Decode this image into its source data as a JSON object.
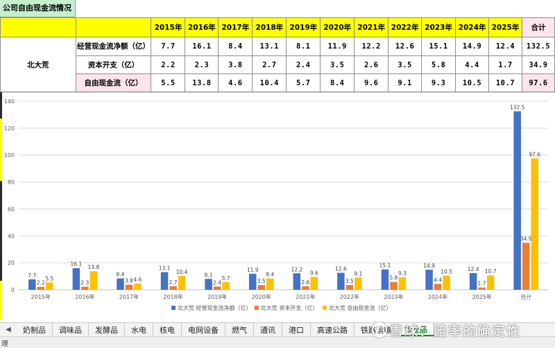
{
  "sheet": {
    "title": "公司自由现金流情况",
    "company": "北大荒",
    "years": [
      "2015年",
      "2016年",
      "2017年",
      "2018年",
      "2019年",
      "2020年",
      "2021年",
      "2022年",
      "2023年",
      "2024年",
      "2025年"
    ],
    "total_label": "合计",
    "rows": [
      {
        "label": "经营现金流净额（亿）",
        "values": [
          "7.7",
          "16.1",
          "8.4",
          "13.1",
          "8.1",
          "11.9",
          "12.2",
          "12.6",
          "15.1",
          "14.9",
          "12.4"
        ],
        "total": "132.5"
      },
      {
        "label": "资本开支（亿）",
        "values": [
          "2.2",
          "2.3",
          "3.8",
          "2.7",
          "2.4",
          "3.5",
          "2.6",
          "3.5",
          "5.8",
          "4.4",
          "1.7"
        ],
        "total": "34.9"
      },
      {
        "label": "自由现金流（亿）",
        "values": [
          "5.5",
          "13.8",
          "4.6",
          "10.4",
          "5.7",
          "8.4",
          "9.6",
          "9.1",
          "9.3",
          "10.5",
          "10.7"
        ],
        "total": "97.6"
      }
    ]
  },
  "chart_data": {
    "type": "bar",
    "categories": [
      "2015年",
      "2016年",
      "2017年",
      "2018年",
      "2019年",
      "2020年",
      "2021年",
      "2022年",
      "2023年",
      "2024年",
      "2025年",
      "合计"
    ],
    "series": [
      {
        "name": "北大荒 经营现金流净额（亿）",
        "color": "#4472c4",
        "values": [
          7.7,
          16.1,
          8.4,
          13.1,
          8.1,
          11.9,
          12.2,
          12.6,
          15.1,
          14.9,
          12.4,
          132.5
        ]
      },
      {
        "name": "北大荒 资本开支（亿）",
        "color": "#ed7d31",
        "values": [
          2.2,
          2.3,
          3.8,
          2.7,
          2.4,
          3.5,
          2.6,
          3.5,
          5.8,
          4.4,
          1.7,
          34.9
        ]
      },
      {
        "name": "北大荒 自由现金流（亿）",
        "color": "#ffc000",
        "values": [
          5.5,
          13.8,
          4.6,
          10.4,
          5.7,
          8.4,
          9.6,
          9.1,
          9.3,
          10.5,
          10.7,
          97.6
        ]
      }
    ],
    "ylim": [
      0,
      140
    ],
    "yticks": [
      0,
      20,
      40,
      60,
      80,
      100,
      120,
      140
    ],
    "grid": true,
    "legend": "bottom-right"
  },
  "tabs": {
    "items": [
      "奶制品",
      "调味品",
      "发酵品",
      "水电",
      "核电",
      "电网设备",
      "燃气",
      "通讯",
      "港口",
      "高速公路",
      "铁路运输",
      "农业品"
    ],
    "active_index": 11
  },
  "status": {
    "text": "理"
  },
  "watermark": {
    "text": "雪球：赔率的确定性"
  }
}
